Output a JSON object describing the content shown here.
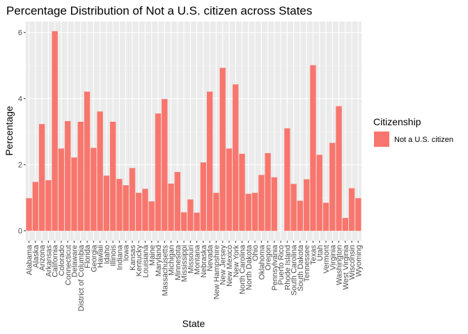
{
  "chart_data": {
    "type": "bar",
    "title": "Percentage Distribution of Not a U.S. citizen across States",
    "xlabel": "State",
    "ylabel": "Percentage",
    "ylim": [
      -0.3,
      6.33
    ],
    "yticks": [
      0,
      2,
      4,
      6
    ],
    "grid": true,
    "legend_position": "right",
    "legend": {
      "title": "Citizenship",
      "entries": [
        {
          "name": "Not a U.S. citizen",
          "color": "#F8766D"
        }
      ]
    },
    "categories": [
      "Alabama",
      "Alaska",
      "Arizona",
      "Arkansas",
      "California",
      "Colorado",
      "Connecticut",
      "Delaware",
      "District of Columbia",
      "Florida",
      "Georgia",
      "Hawaii",
      "Idaho",
      "Illinois",
      "Indiana",
      "Iowa",
      "Kansas",
      "Kentucky",
      "Louisiana",
      "Maine",
      "Maryland",
      "Massachusetts",
      "Michigan",
      "Minnesota",
      "Mississippi",
      "Missouri",
      "Montana",
      "Nebraska",
      "Nevada",
      "New Hampshire",
      "New Jersey",
      "New Mexico",
      "New York",
      "North Carolina",
      "North Dakota",
      "Ohio",
      "Oklahoma",
      "Oregon",
      "Pennsylvania",
      "Puerto Rico",
      "Rhode Island",
      "South Carolina",
      "South Dakota",
      "Tennessee",
      "Texas",
      "Utah",
      "Vermont",
      "Virginia",
      "Washington",
      "West Virginia",
      "Wisconsin",
      "Wyoming"
    ],
    "series": [
      {
        "name": "Not a U.S. citizen",
        "color": "#F8766D",
        "values": [
          0.99,
          1.48,
          3.23,
          1.53,
          6.04,
          2.49,
          3.32,
          2.22,
          3.3,
          4.21,
          2.51,
          3.61,
          1.67,
          3.3,
          1.57,
          1.38,
          1.9,
          1.15,
          1.27,
          0.89,
          3.55,
          3.99,
          1.43,
          1.78,
          0.56,
          0.95,
          0.55,
          2.07,
          4.21,
          1.15,
          4.93,
          2.49,
          4.43,
          2.33,
          1.12,
          1.15,
          1.69,
          2.35,
          1.62,
          0,
          3.1,
          1.42,
          0.91,
          1.56,
          5.01,
          2.3,
          0.85,
          2.66,
          3.77,
          0.39,
          1.29,
          0.99
        ]
      }
    ]
  }
}
